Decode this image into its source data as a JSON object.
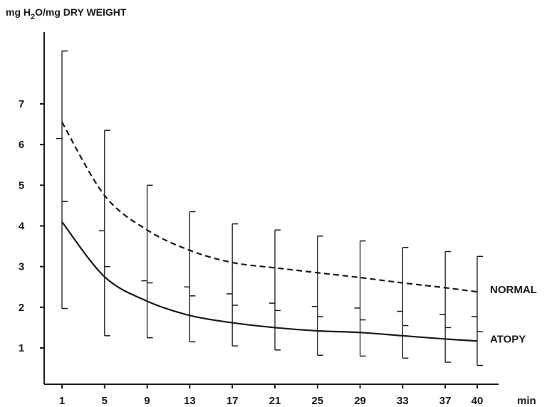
{
  "chart_data": {
    "type": "line",
    "title": "",
    "ylabel": "mg H2O/mg DRY WEIGHT",
    "ylabel_parts": {
      "pre": "mg H",
      "sub": "2",
      "post": "O/mg DRY WEIGHT"
    },
    "xlabel": "min",
    "x": [
      1,
      5,
      9,
      13,
      17,
      21,
      25,
      29,
      33,
      37,
      40
    ],
    "x_tick_labels": [
      "1",
      "5",
      "9",
      "13",
      "17",
      "21",
      "25",
      "29",
      "33",
      "37",
      "40"
    ],
    "y_ticks": [
      1,
      2,
      3,
      4,
      5,
      6,
      7
    ],
    "y_tick_labels": [
      "1",
      "2",
      "3",
      "4",
      "5",
      "6",
      "7"
    ],
    "xlim": [
      -0.5,
      40
    ],
    "ylim": [
      0.2,
      8.3
    ],
    "grid": false,
    "legend": "inline labels at right end of lines",
    "series": [
      {
        "name": "NORMAL",
        "style": "dashed",
        "values": [
          6.55,
          4.75,
          3.9,
          3.4,
          3.1,
          2.97,
          2.85,
          2.73,
          2.6,
          2.48,
          2.38
        ],
        "error_high": [
          8.3,
          6.35,
          5.0,
          4.35,
          4.05,
          3.9,
          3.75,
          3.63,
          3.47,
          3.37,
          3.25
        ],
        "error_low": [
          4.6,
          3.0,
          2.6,
          2.28,
          2.05,
          1.92,
          1.77,
          1.69,
          1.55,
          1.5,
          1.4
        ]
      },
      {
        "name": "ATOPY",
        "style": "solid",
        "values": [
          4.1,
          2.75,
          2.15,
          1.8,
          1.62,
          1.5,
          1.42,
          1.38,
          1.3,
          1.22,
          1.17
        ],
        "error_high": [
          6.15,
          3.88,
          2.65,
          2.5,
          2.33,
          2.1,
          2.02,
          1.98,
          1.9,
          1.82,
          1.77
        ],
        "error_low": [
          1.97,
          1.3,
          1.25,
          1.15,
          1.05,
          0.95,
          0.82,
          0.8,
          0.75,
          0.65,
          0.57
        ]
      }
    ]
  }
}
